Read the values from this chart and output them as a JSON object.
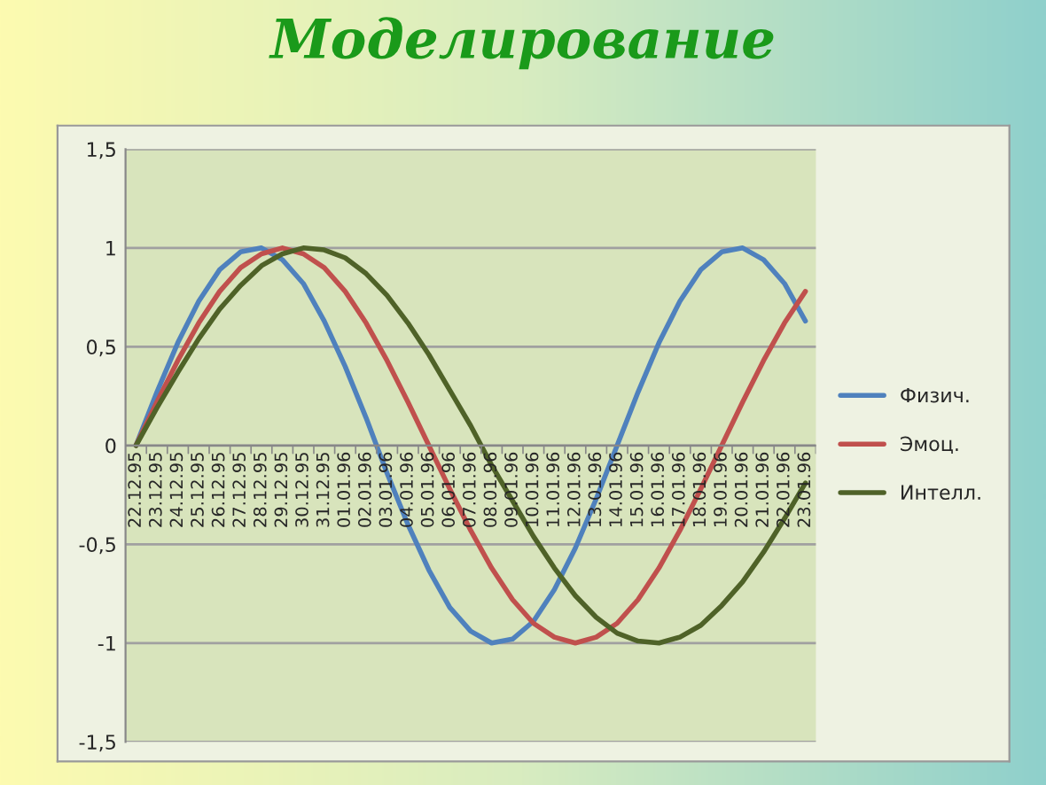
{
  "chart_data": {
    "type": "line",
    "title": "Моделирование",
    "categories": [
      "22.12.95",
      "23.12.95",
      "24.12.95",
      "25.12.95",
      "26.12.95",
      "27.12.95",
      "28.12.95",
      "29.12.95",
      "30.12.95",
      "31.12.95",
      "01.01.96",
      "02.01.96",
      "03.01.96",
      "04.01.96",
      "05.01.96",
      "06.01.96",
      "07.01.96",
      "08.01.96",
      "09.01.96",
      "10.01.96",
      "11.01.96",
      "12.01.96",
      "13.01.96",
      "14.01.96",
      "15.01.96",
      "16.01.96",
      "17.01.96",
      "18.01.96",
      "19.01.96",
      "20.01.96",
      "21.01.96",
      "22.01.96",
      "23.01.96"
    ],
    "series": [
      {
        "name": "Физич.",
        "color": "#4f81bd",
        "values": [
          0,
          0.27,
          0.52,
          0.73,
          0.89,
          0.98,
          1.0,
          0.94,
          0.82,
          0.63,
          0.4,
          0.14,
          -0.14,
          -0.4,
          -0.63,
          -0.82,
          -0.94,
          -1.0,
          -0.98,
          -0.89,
          -0.73,
          -0.52,
          -0.27,
          0,
          0.27,
          0.52,
          0.73,
          0.89,
          0.98,
          1.0,
          0.94,
          0.82,
          0.63
        ]
      },
      {
        "name": "Эмоц.",
        "color": "#c0504d",
        "values": [
          0,
          0.22,
          0.43,
          0.62,
          0.78,
          0.9,
          0.97,
          1.0,
          0.97,
          0.9,
          0.78,
          0.62,
          0.43,
          0.22,
          0,
          -0.22,
          -0.43,
          -0.62,
          -0.78,
          -0.9,
          -0.97,
          -1.0,
          -0.97,
          -0.9,
          -0.78,
          -0.62,
          -0.43,
          -0.22,
          0,
          0.22,
          0.43,
          0.62,
          0.78
        ]
      },
      {
        "name": "Интелл.",
        "color": "#4f6228",
        "values": [
          0,
          0.19,
          0.37,
          0.54,
          0.69,
          0.81,
          0.91,
          0.97,
          1.0,
          0.99,
          0.95,
          0.87,
          0.76,
          0.62,
          0.46,
          0.28,
          0.1,
          -0.1,
          -0.28,
          -0.46,
          -0.62,
          -0.76,
          -0.87,
          -0.95,
          -0.99,
          -1.0,
          -0.97,
          -0.91,
          -0.81,
          -0.69,
          -0.54,
          -0.37,
          -0.19
        ]
      }
    ],
    "ylim": [
      -1.5,
      1.5
    ],
    "yticks": [
      {
        "value": -1.5,
        "label": "-1,5"
      },
      -1,
      {
        "value": -0.5,
        "label": "-0,5"
      },
      0,
      {
        "value": 0.5,
        "label": "0,5"
      },
      1,
      {
        "value": 1.5,
        "label": "1,5"
      }
    ],
    "grid": "y",
    "legend": "right",
    "marker": "none",
    "line_style": "solid"
  }
}
